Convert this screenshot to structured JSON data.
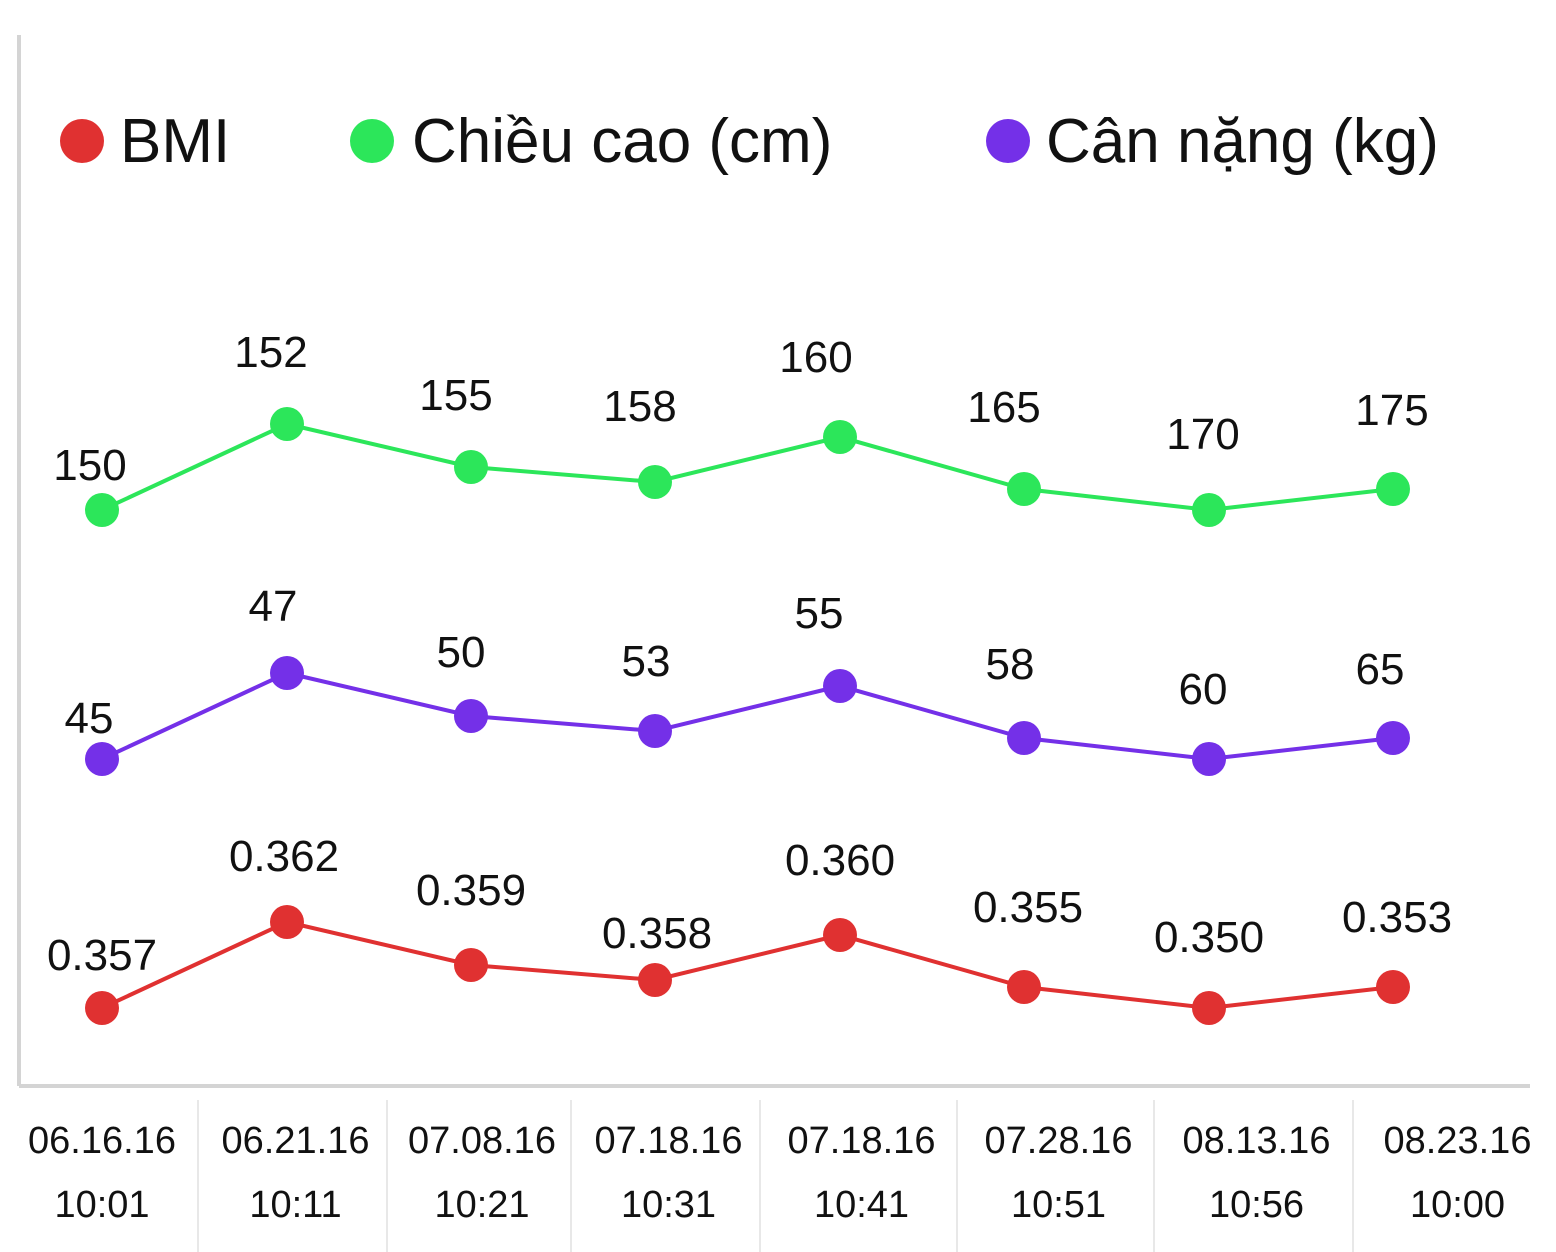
{
  "chart_data": {
    "type": "line",
    "categories": [
      [
        "06.16.16",
        "10:01"
      ],
      [
        "06.21.16",
        "10:11"
      ],
      [
        "07.08.16",
        "10:21"
      ],
      [
        "07.18.16",
        "10:31"
      ],
      [
        "07.18.16",
        "10:41"
      ],
      [
        "07.28.16",
        "10:51"
      ],
      [
        "08.13.16",
        "10:56"
      ],
      [
        "08.23.16",
        "10:00"
      ]
    ],
    "series": [
      {
        "name": "BMI",
        "color": "#e03131",
        "values": [
          0.357,
          0.362,
          0.359,
          0.358,
          0.36,
          0.355,
          0.35,
          0.353
        ],
        "labels": [
          "0.357",
          "0.362",
          "0.359",
          "0.358",
          "0.360",
          "0.355",
          "0.350",
          "0.353"
        ]
      },
      {
        "name": "Chiều cao (cm)",
        "color": "#2ce65a",
        "values": [
          150,
          152,
          155,
          158,
          160,
          165,
          170,
          175
        ],
        "labels": [
          "150",
          "152",
          "155",
          "158",
          "160",
          "165",
          "170",
          "175"
        ]
      },
      {
        "name": "Cân nặng (kg)",
        "color": "#7430e8",
        "values": [
          45,
          47,
          50,
          53,
          55,
          58,
          60,
          65
        ],
        "labels": [
          "45",
          "47",
          "50",
          "53",
          "55",
          "58",
          "60",
          "65"
        ]
      }
    ],
    "legend_position": "top",
    "grid": false
  }
}
